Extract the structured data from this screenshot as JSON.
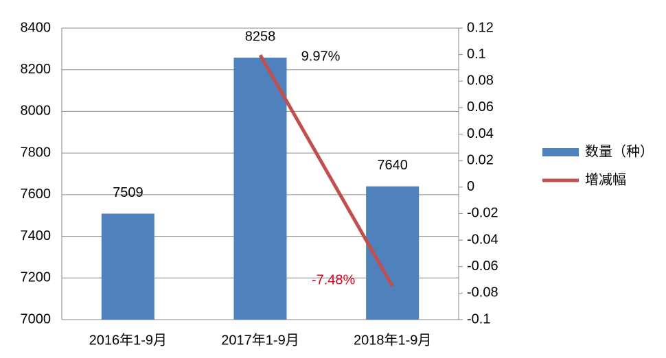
{
  "chart_data": {
    "type": "bar_line",
    "categories": [
      "2016年1-9月",
      "2017年1-9月",
      "2018年1-9月"
    ],
    "series": [
      {
        "name": "数量（种）",
        "color": "#4f81bd",
        "type": "bar",
        "values": [
          7509,
          8258,
          7640
        ]
      },
      {
        "name": "增减幅",
        "color": "#c0504d",
        "type": "line",
        "axis": "y2",
        "values": [
          null,
          0.0997,
          -0.0748
        ],
        "value_labels": [
          null,
          "9.97%",
          "-7.48%"
        ]
      }
    ],
    "ylim": [
      7000,
      8400
    ],
    "yticks": [
      7000,
      7200,
      7400,
      7600,
      7800,
      8000,
      8200,
      8400
    ],
    "y2lim": [
      -0.1,
      0.12
    ],
    "y2ticks": [
      -0.1,
      -0.08,
      -0.06,
      -0.04,
      -0.02,
      0,
      0.02,
      0.04,
      0.06,
      0.08,
      0.1,
      0.12
    ],
    "grid": true,
    "legend": "right"
  }
}
